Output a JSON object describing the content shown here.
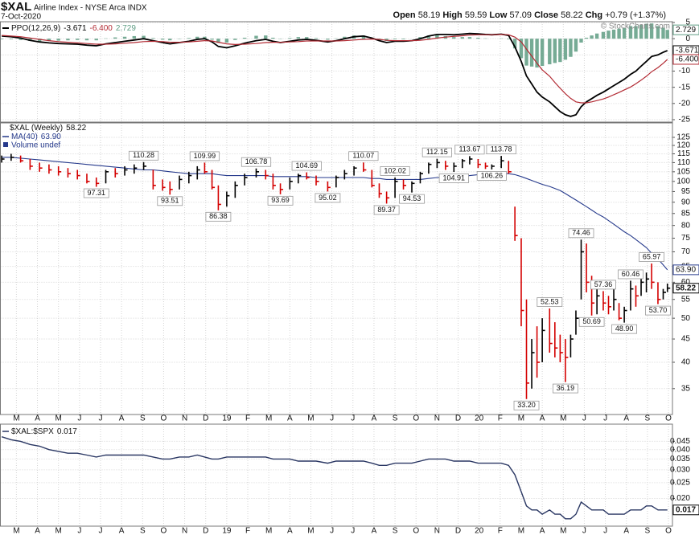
{
  "header": {
    "symbol": "$XAL",
    "name": "Airline Index - NYSE Arca INDX",
    "date": "7-Oct-2020",
    "open_label": "Open",
    "open": 58.19,
    "high_label": "High",
    "low_label": "Low",
    "close_label": "Close",
    "change_label": "Chg",
    "change": "+0.79 (+1.37%)",
    "credit": "© StockCharts.com"
  },
  "chart_data": [
    {
      "type": "ppo",
      "title": "PPO(12,26,9)",
      "ylim": [
        -25.75,
        5.25
      ],
      "yticks": [
        5,
        0,
        -5,
        -10,
        -15,
        -20,
        -25
      ],
      "grid": true,
      "series": [
        {
          "color": "#000000",
          "last_label": "-3.671",
          "values": [
            0.8,
            0.6,
            0.2,
            -0.5,
            -1.0,
            -1.3,
            -1.5,
            -1.6,
            -1.7,
            -2.0,
            -2.2,
            -1.6,
            -1.2,
            -0.8,
            -0.4,
            0.0,
            -0.6,
            -1.2,
            -1.6,
            -1.2,
            -0.8,
            -0.2,
            0.0,
            -1.0,
            -2.4,
            -2.8,
            -2.2,
            -1.4,
            -0.6,
            -0.2,
            -0.8,
            -1.2,
            -0.8,
            -0.4,
            -0.2,
            -0.5,
            -1.0,
            -0.6,
            0.0,
            0.6,
            0.8,
            0.2,
            -0.6,
            -1.2,
            -0.8,
            -0.8,
            -0.6,
            0.0,
            0.8,
            1.3,
            1.3,
            1.2,
            1.4,
            1.6,
            1.5,
            1.3,
            1.2,
            1.4,
            1.0,
            -2.5,
            -7,
            -11.5,
            -14,
            -16.5,
            -18,
            -19.5,
            -21,
            -22.5,
            -23.5,
            -24,
            -23.5,
            -21,
            -19.5,
            -18.5,
            -17.5,
            -16.5,
            -15.5,
            -14.5,
            -13.5,
            -12.5,
            -11,
            -10,
            -8.5,
            -7,
            -5.5,
            -5,
            -4.2,
            -3.671
          ]
        },
        {
          "color": "#b22a33",
          "last_label": "-6.400",
          "values": [
            1.0,
            0.8,
            0.6,
            0.2,
            -0.2,
            -0.6,
            -0.9,
            -1.1,
            -1.3,
            -1.5,
            -1.7,
            -1.7,
            -1.6,
            -1.4,
            -1.2,
            -0.9,
            -0.8,
            -0.9,
            -1.1,
            -1.1,
            -1.0,
            -0.8,
            -0.6,
            -0.7,
            -1.1,
            -1.6,
            -1.8,
            -1.7,
            -1.5,
            -1.2,
            -1.1,
            -1.1,
            -1.0,
            -0.9,
            -0.7,
            -0.7,
            -0.7,
            -0.7,
            -0.6,
            -0.4,
            -0.2,
            -0.1,
            -0.2,
            -0.5,
            -0.6,
            -0.6,
            -0.6,
            -0.5,
            -0.2,
            0.2,
            0.5,
            0.7,
            0.9,
            1.1,
            1.2,
            1.2,
            1.2,
            1.3,
            1.2,
            0.5,
            -1.0,
            -3.2,
            -5.4,
            -7.6,
            -9.6,
            -11.6,
            -13.5,
            -15.3,
            -17.0,
            -18.4,
            -19.5,
            -19.8,
            -19.8,
            -19.5,
            -19.1,
            -18.6,
            -18.0,
            -17.3,
            -16.6,
            -15.8,
            -14.9,
            -13.9,
            -12.8,
            -11.6,
            -10.2,
            -8.9,
            -7.6,
            -6.4
          ]
        },
        {
          "color": "#5e9c83",
          "style": "histogram",
          "last_label": "2.729",
          "values": [
            -0.2,
            -0.2,
            -0.4,
            -0.7,
            -0.8,
            -0.7,
            -0.6,
            -0.5,
            -0.4,
            -0.5,
            -0.5,
            0.1,
            0.4,
            0.6,
            0.8,
            0.9,
            0.2,
            -0.3,
            -0.5,
            -0.1,
            0.2,
            0.6,
            0.6,
            -0.3,
            -1.3,
            -1.2,
            -0.4,
            0.3,
            0.9,
            1.0,
            0.3,
            -0.1,
            0.2,
            0.5,
            0.5,
            0.2,
            -0.3,
            0.1,
            0.6,
            1.0,
            1.0,
            0.3,
            -0.4,
            -0.7,
            -0.2,
            -0.2,
            0.0,
            0.5,
            1.0,
            1.1,
            0.8,
            0.5,
            0.5,
            0.5,
            0.3,
            0.1,
            0.0,
            0.1,
            -0.2,
            -3.0,
            -6.0,
            -8.3,
            -8.6,
            -8.9,
            -8.4,
            -7.9,
            -7.5,
            -7.2,
            -6.5,
            -5.6,
            -4.0,
            -1.2,
            0.3,
            1.0,
            1.6,
            2.1,
            2.5,
            2.8,
            3.1,
            3.3,
            3.9,
            3.9,
            4.3,
            4.6,
            4.7,
            3.9,
            3.4,
            2.729
          ]
        }
      ]
    },
    {
      "type": "ohlc",
      "title": "$XAL (Weekly)",
      "log": true,
      "grid": true,
      "up_color": "#000000",
      "down_color": "#d40000",
      "xlim": [
        -0.76,
        31.19
      ],
      "xticks": [
        {
          "value": 0,
          "label": "M"
        },
        {
          "value": 1,
          "label": "A"
        },
        {
          "value": 2,
          "label": "M"
        },
        {
          "value": 3,
          "label": "J"
        },
        {
          "value": 4,
          "label": "J"
        },
        {
          "value": 5,
          "label": "A"
        },
        {
          "value": 6,
          "label": "S"
        },
        {
          "value": 7,
          "label": "O"
        },
        {
          "value": 8,
          "label": "N"
        },
        {
          "value": 9,
          "label": "D"
        },
        {
          "value": 10,
          "label": "19"
        },
        {
          "value": 11,
          "label": "F"
        },
        {
          "value": 12,
          "label": "M"
        },
        {
          "value": 13,
          "label": "A"
        },
        {
          "value": 14,
          "label": "M"
        },
        {
          "value": 15,
          "label": "J"
        },
        {
          "value": 16,
          "label": "J"
        },
        {
          "value": 17,
          "label": "A"
        },
        {
          "value": 18,
          "label": "S"
        },
        {
          "value": 19,
          "label": "O"
        },
        {
          "value": 20,
          "label": "N"
        },
        {
          "value": 21,
          "label": "D"
        },
        {
          "value": 22,
          "label": "20"
        },
        {
          "value": 23,
          "label": "F"
        },
        {
          "value": 24,
          "label": "M"
        },
        {
          "value": 25,
          "label": "A"
        },
        {
          "value": 26,
          "label": "M"
        },
        {
          "value": 27,
          "label": "J"
        },
        {
          "value": 28,
          "label": "J"
        },
        {
          "value": 29,
          "label": "A"
        },
        {
          "value": 30,
          "label": "S"
        },
        {
          "value": 31,
          "label": "O"
        }
      ],
      "ylim": [
        30.7,
        134.5
      ],
      "yticks": [
        35,
        40,
        45,
        50,
        55,
        60,
        65,
        70,
        75,
        80,
        85,
        90,
        95,
        100,
        105,
        110,
        115,
        120,
        125
      ],
      "x": [
        -0.7,
        -0.25,
        0.2,
        0.65,
        1.1,
        1.55,
        2.0,
        2.45,
        2.9,
        3.35,
        3.8,
        4.25,
        4.7,
        5.15,
        5.6,
        6.05,
        6.5,
        6.95,
        7.3,
        7.75,
        8.2,
        8.6,
        8.95,
        9.3,
        9.6,
        10.0,
        10.4,
        10.85,
        11.4,
        11.85,
        12.2,
        12.55,
        13.0,
        13.4,
        13.8,
        14.25,
        14.8,
        15.2,
        15.6,
        16.05,
        16.5,
        16.9,
        17.25,
        17.6,
        18.0,
        18.4,
        18.8,
        19.2,
        19.6,
        20.0,
        20.4,
        20.8,
        21.2,
        21.55,
        21.95,
        22.3,
        22.6,
        23.05,
        23.4,
        23.7,
        24.0,
        24.25,
        24.5,
        24.75,
        25.0,
        25.35,
        25.6,
        25.85,
        26.1,
        26.35,
        26.6,
        26.85,
        27.1,
        27.35,
        27.6,
        27.9,
        28.15,
        28.4,
        28.65,
        28.9,
        29.2,
        29.45,
        29.7,
        29.95,
        30.2,
        30.5,
        30.75,
        30.95
      ],
      "high": [
        114,
        115,
        114,
        112,
        110,
        109,
        108,
        107,
        106,
        104,
        102,
        106,
        107,
        108,
        109,
        110.28,
        106,
        101,
        100,
        103,
        105,
        108,
        109.99,
        106,
        98,
        95,
        100,
        104,
        106.78,
        106,
        104,
        99,
        102,
        104,
        104.69,
        103,
        100,
        103,
        106,
        108,
        110.07,
        106,
        99,
        95,
        102.02,
        101,
        100,
        105,
        110,
        112.15,
        111,
        110,
        112,
        113.67,
        112,
        110,
        109,
        113.78,
        111,
        88,
        75,
        55,
        45,
        48,
        50,
        52.53,
        49,
        46,
        45,
        46,
        52,
        74.46,
        73,
        62,
        58,
        57.36,
        56,
        58,
        54,
        53,
        60.46,
        59,
        62,
        63,
        65.97,
        60,
        58,
        59.59
      ],
      "low": [
        110,
        111,
        110,
        106,
        105,
        104,
        103,
        102,
        101,
        99,
        97.31,
        99,
        102,
        103,
        104,
        106,
        96,
        95.4,
        93.51,
        96,
        99,
        101,
        104,
        96,
        86.38,
        88,
        92,
        98,
        102,
        101,
        96,
        93.69,
        96,
        99,
        101,
        98,
        95.02,
        97,
        101,
        103,
        105,
        97,
        92,
        89.37,
        92,
        96,
        94.53,
        99,
        104,
        107,
        106,
        104.91,
        107,
        109,
        107,
        106.5,
        106.26,
        107,
        104,
        74,
        48,
        33.2,
        35,
        37,
        40,
        42,
        41,
        40,
        36.19,
        41,
        46,
        55,
        57,
        50.69,
        51,
        52,
        51,
        52,
        49.5,
        48.9,
        52,
        53,
        56,
        57,
        58,
        53.7,
        55,
        57.09
      ],
      "close": [
        112,
        113,
        111,
        108,
        107,
        106,
        105,
        104,
        103,
        100,
        99,
        105,
        104,
        106,
        107,
        108,
        98,
        97,
        96,
        101,
        103,
        106,
        105,
        97,
        89,
        93,
        98,
        102,
        105,
        103,
        98,
        96,
        100,
        103,
        102,
        100,
        97,
        102,
        104,
        107,
        106,
        98,
        94,
        92,
        100,
        98,
        99,
        104,
        109,
        110,
        108,
        108,
        111,
        112,
        109,
        108,
        108,
        111,
        105,
        76,
        52,
        36,
        42,
        40,
        47,
        44,
        43,
        42,
        41,
        45,
        50,
        70,
        60,
        54,
        56,
        54,
        53,
        55,
        50,
        52,
        58,
        56,
        60,
        61,
        60,
        55,
        57,
        58.22
      ],
      "overlays": [
        {
          "name": "MA(40)",
          "color": "#263a8c",
          "last_label": "63.90",
          "values": [
            113,
            113,
            112.5,
            112,
            111.5,
            111,
            110.5,
            110,
            109.5,
            109,
            108.5,
            108,
            107.5,
            107,
            106.5,
            106,
            106,
            105.5,
            105,
            104.5,
            104,
            104,
            104,
            104,
            103.5,
            103,
            103,
            103,
            103,
            103,
            102.5,
            102.5,
            102.5,
            102.5,
            102.5,
            102,
            102,
            102,
            102,
            102,
            102,
            101.5,
            101.5,
            101,
            101,
            101,
            101,
            101,
            101.5,
            102,
            102,
            102.5,
            102.5,
            103,
            103.5,
            103.5,
            104,
            104,
            104,
            103.5,
            102.5,
            101.5,
            100.5,
            99.5,
            98.5,
            97.5,
            96.5,
            95.5,
            94,
            92.5,
            91,
            89.5,
            88,
            86.5,
            85,
            83.5,
            82,
            80.5,
            79,
            77.5,
            76,
            74.5,
            73,
            71.5,
            69.5,
            67.5,
            65.5,
            63.9
          ]
        }
      ],
      "volume_label": "Volume undef",
      "annotations": [
        {
          "x": 3.8,
          "value": 97.31,
          "label": "97.31"
        },
        {
          "x": 6.05,
          "value": 110.28,
          "label": "110.28"
        },
        {
          "x": 7.3,
          "value": 93.51,
          "label": "93.51"
        },
        {
          "x": 8.95,
          "value": 109.99,
          "label": "109.99"
        },
        {
          "x": 9.6,
          "value": 86.38,
          "label": "86.38"
        },
        {
          "x": 11.4,
          "value": 106.78,
          "label": "106.78"
        },
        {
          "x": 12.55,
          "value": 93.69,
          "label": "93.69"
        },
        {
          "x": 13.8,
          "value": 104.69,
          "label": "104.69"
        },
        {
          "x": 14.8,
          "value": 95.02,
          "label": "95.02"
        },
        {
          "x": 16.5,
          "value": 110.07,
          "label": "110.07"
        },
        {
          "x": 17.6,
          "value": 89.37,
          "label": "89.37"
        },
        {
          "x": 18.0,
          "value": 102.02,
          "label": "102.02"
        },
        {
          "x": 18.8,
          "value": 94.53,
          "label": "94.53"
        },
        {
          "x": 20.0,
          "value": 112.15,
          "label": "112.15"
        },
        {
          "x": 20.8,
          "value": 104.91,
          "label": "104.91"
        },
        {
          "x": 21.55,
          "value": 113.67,
          "label": "113.67"
        },
        {
          "x": 22.6,
          "value": 106.26,
          "label": "106.26"
        },
        {
          "x": 23.05,
          "value": 113.78,
          "label": "113.78"
        },
        {
          "x": 24.25,
          "value": 33.2,
          "label": "33.20"
        },
        {
          "x": 25.35,
          "value": 52.53,
          "label": "52.53"
        },
        {
          "x": 26.1,
          "value": 36.19,
          "label": "36.19"
        },
        {
          "x": 26.85,
          "value": 74.46,
          "label": "74.46"
        },
        {
          "x": 27.35,
          "value": 50.69,
          "label": "50.69"
        },
        {
          "x": 27.9,
          "value": 57.36,
          "label": "57.36"
        },
        {
          "x": 28.9,
          "value": 48.9,
          "label": "48.90"
        },
        {
          "x": 29.2,
          "value": 60.46,
          "label": "60.46"
        },
        {
          "x": 30.2,
          "value": 65.97,
          "label": "65.97"
        },
        {
          "x": 30.5,
          "value": 53.7,
          "label": "53.70"
        }
      ]
    },
    {
      "type": "line",
      "title": "$XAL:$SPX",
      "color": "#2a3763",
      "log": true,
      "grid": true,
      "ylim": [
        0.0135,
        0.0574
      ],
      "yticks": [
        0.045,
        {
          "value": 0.04,
          "label": "0.040"
        },
        0.035,
        {
          "value": 0.03,
          "label": "0.030"
        },
        0.025,
        {
          "value": 0.02,
          "label": "0.020"
        }
      ],
      "values": [
        0.048,
        0.046,
        0.045,
        0.043,
        0.042,
        0.04,
        0.039,
        0.038,
        0.038,
        0.037,
        0.036,
        0.037,
        0.037,
        0.037,
        0.037,
        0.037,
        0.036,
        0.035,
        0.035,
        0.036,
        0.036,
        0.037,
        0.036,
        0.035,
        0.035,
        0.036,
        0.036,
        0.036,
        0.036,
        0.036,
        0.035,
        0.035,
        0.035,
        0.034,
        0.034,
        0.034,
        0.033,
        0.034,
        0.034,
        0.034,
        0.034,
        0.033,
        0.032,
        0.032,
        0.033,
        0.033,
        0.033,
        0.034,
        0.035,
        0.035,
        0.035,
        0.034,
        0.034,
        0.034,
        0.033,
        0.033,
        0.033,
        0.033,
        0.032,
        0.028,
        0.022,
        0.018,
        0.017,
        0.017,
        0.016,
        0.017,
        0.016,
        0.016,
        0.015,
        0.015,
        0.016,
        0.019,
        0.018,
        0.017,
        0.017,
        0.017,
        0.016,
        0.016,
        0.016,
        0.016,
        0.017,
        0.017,
        0.017,
        0.018,
        0.018,
        0.017,
        0.017,
        0.017
      ]
    }
  ]
}
